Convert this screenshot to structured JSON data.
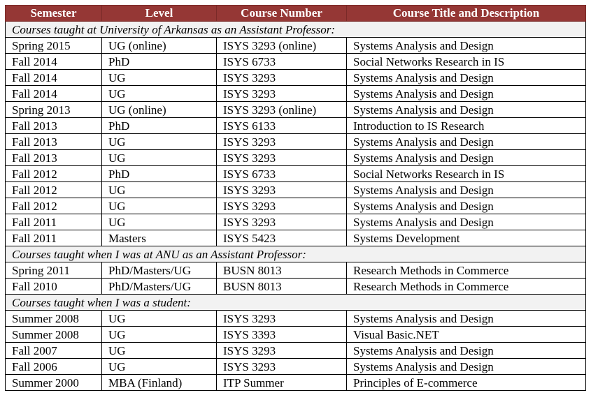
{
  "colors": {
    "header_bg": "#953735",
    "header_text": "#ffffff",
    "section_bg": "#f2f2f2"
  },
  "headers": [
    "Semester",
    "Level",
    "Course Number",
    "Course Title and Description"
  ],
  "rows": [
    {
      "section": "Courses taught at University of Arkansas as an Assistant Professor:"
    },
    {
      "cells": [
        "Spring 2015",
        "UG (online)",
        "ISYS 3293 (online)",
        "Systems Analysis and Design"
      ]
    },
    {
      "cells": [
        "Fall 2014",
        "PhD",
        "ISYS 6733",
        "Social Networks Research in IS"
      ]
    },
    {
      "cells": [
        "Fall 2014",
        "UG",
        "ISYS 3293",
        "Systems Analysis and Design"
      ]
    },
    {
      "cells": [
        "Fall 2014",
        "UG",
        "ISYS 3293",
        "Systems Analysis and Design"
      ]
    },
    {
      "cells": [
        "Spring 2013",
        "UG (online)",
        "ISYS 3293 (online)",
        "Systems Analysis and Design"
      ]
    },
    {
      "cells": [
        "Fall 2013",
        "PhD",
        "ISYS 6133",
        "Introduction to IS Research"
      ]
    },
    {
      "cells": [
        "Fall 2013",
        "UG",
        "ISYS 3293",
        "Systems Analysis and Design"
      ]
    },
    {
      "cells": [
        "Fall 2013",
        "UG",
        "ISYS 3293",
        "Systems Analysis and Design"
      ]
    },
    {
      "cells": [
        "Fall 2012",
        "PhD",
        "ISYS 6733",
        "Social Networks Research in IS"
      ]
    },
    {
      "cells": [
        "Fall 2012",
        "UG",
        "ISYS 3293",
        "Systems Analysis and Design"
      ]
    },
    {
      "cells": [
        "Fall 2012",
        "UG",
        "ISYS 3293",
        "Systems Analysis and Design"
      ]
    },
    {
      "cells": [
        "Fall 2011",
        "UG",
        "ISYS 3293",
        "Systems Analysis and Design"
      ]
    },
    {
      "cells": [
        "Fall 2011",
        "Masters",
        "ISYS 5423",
        "Systems Development"
      ]
    },
    {
      "section": "Courses taught when I was at ANU as an Assistant Professor:"
    },
    {
      "cells": [
        "Spring 2011",
        "PhD/Masters/UG",
        "BUSN 8013",
        "Research Methods in Commerce"
      ]
    },
    {
      "cells": [
        "Fall 2010",
        "PhD/Masters/UG",
        "BUSN 8013",
        "Research Methods in Commerce"
      ]
    },
    {
      "section": "Courses taught when I was a student:"
    },
    {
      "cells": [
        "Summer 2008",
        "UG",
        "ISYS 3293",
        "Systems Analysis and Design"
      ]
    },
    {
      "cells": [
        "Summer 2008",
        "UG",
        "ISYS 3393",
        "Visual Basic.NET"
      ]
    },
    {
      "cells": [
        "Fall 2007",
        "UG",
        "ISYS 3293",
        "Systems Analysis and Design"
      ]
    },
    {
      "cells": [
        "Fall 2006",
        "UG",
        "ISYS 3293",
        "Systems Analysis and Design"
      ]
    },
    {
      "cells": [
        "Summer 2000",
        "MBA (Finland)",
        "ITP Summer",
        "Principles of E-commerce"
      ]
    }
  ]
}
